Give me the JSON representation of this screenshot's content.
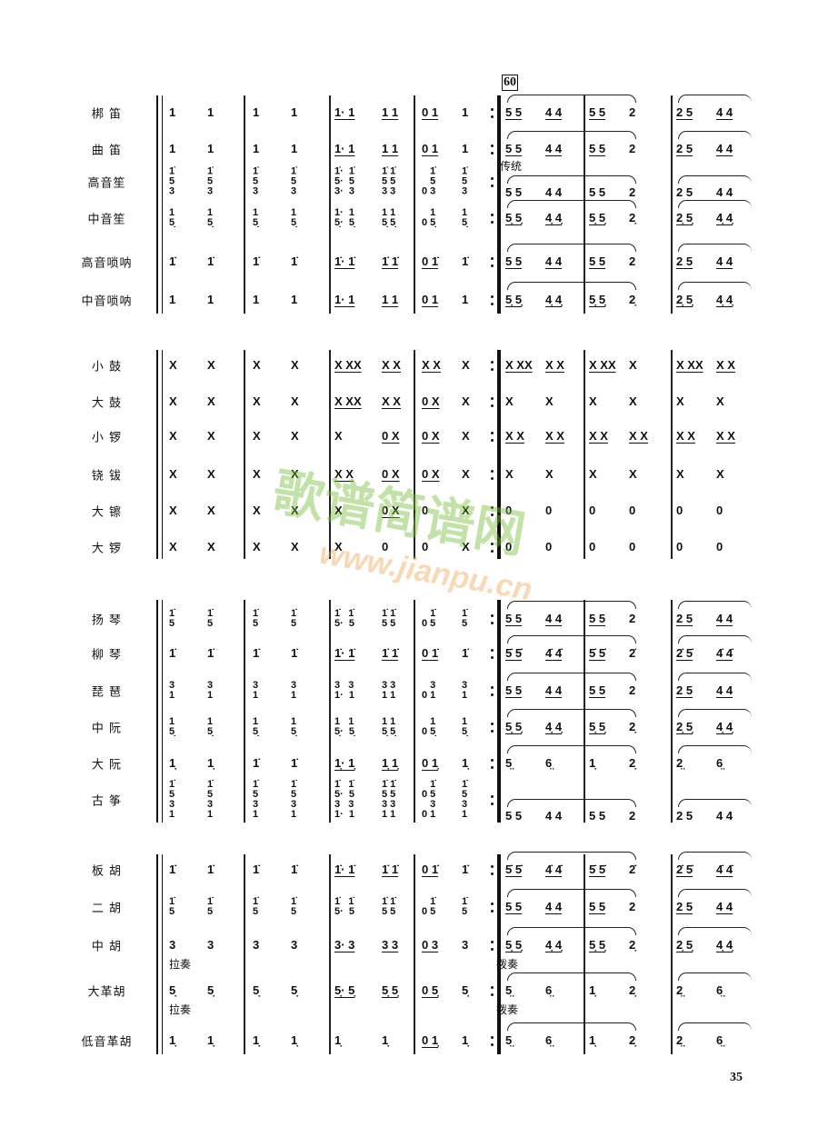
{
  "rehearsal_mark": "60",
  "page_number": "35",
  "watermark": {
    "title": "歌谱简谱网",
    "url": "www.jianpu.cn"
  },
  "sections": [
    {
      "rows": [
        {
          "label": "梆 笛",
          "slur": true,
          "measures": [
            [
              "1",
              "1"
            ],
            [
              "1",
              "1"
            ],
            [
              "1· 1",
              "1 1"
            ],
            [
              "0 1",
              "1"
            ],
            [
              "5 5",
              "4 4"
            ],
            [
              "5 5",
              "2"
            ],
            [
              "2 5",
              "4 4"
            ]
          ]
        },
        {
          "label": "曲 笛",
          "slur": true,
          "measures": [
            [
              "1",
              "1"
            ],
            [
              "1",
              "1"
            ],
            [
              "1· 1",
              "1 1"
            ],
            [
              "0 1",
              "1"
            ],
            [
              "5 5",
              "4 4"
            ],
            [
              "5 5",
              "2"
            ],
            [
              "2 5",
              "4 4"
            ]
          ]
        },
        {
          "label": "高音笙",
          "slur": true,
          "annotation": "传统",
          "measures": [
            [
              "1̇\n5\n3",
              "1̇\n5\n3"
            ],
            [
              "1̇\n5\n3",
              "1̇\n5\n3"
            ],
            [
              "1̇·  1̇\n5·  5\n3·  3",
              "1̇ 1̇\n5 5\n3 3"
            ],
            [
              "   1̇\n   5\n0 3",
              "1̇\n5\n3"
            ],
            [
              "\n\n5 5",
              "\n\n4 4"
            ],
            [
              "\n\n5 5",
              "\n\n2"
            ],
            [
              "\n\n2 5",
              "\n\n4 4"
            ]
          ]
        },
        {
          "label": "中音笙",
          "slur": true,
          "measures": [
            [
              "1\n5̣",
              "1\n5̣"
            ],
            [
              "1\n5̣",
              "1\n5̣"
            ],
            [
              "1·  1\n5̣·  5̣",
              "1 1\n5̣ 5̣"
            ],
            [
              "   1\n0 5̣",
              "1\n5̣"
            ],
            [
              "5̣ 5̣",
              "4̣ 4̣"
            ],
            [
              "5̣ 5̣",
              "2̣"
            ],
            [
              "2̣ 5̣",
              "4̣ 4̣"
            ]
          ]
        },
        {
          "label": "高音唢呐",
          "slur": true,
          "measures": [
            [
              "1̇",
              "1̇"
            ],
            [
              "1̇",
              "1̇"
            ],
            [
              "1̇· 1̇",
              "1̇ 1̇"
            ],
            [
              "0 1̇",
              "1̇"
            ],
            [
              "5 5",
              "4 4"
            ],
            [
              "5 5",
              "2"
            ],
            [
              "2 5",
              "4 4"
            ]
          ]
        },
        {
          "label": "中音唢呐",
          "slur": true,
          "measures": [
            [
              "1",
              "1"
            ],
            [
              "1",
              "1"
            ],
            [
              "1· 1",
              "1 1"
            ],
            [
              "0 1",
              "1"
            ],
            [
              "5̣ 5̣",
              "4̣ 4̣"
            ],
            [
              "5̣ 5̣",
              "2̣"
            ],
            [
              "2̣ 5̣",
              "4̣ 4̣"
            ]
          ]
        }
      ]
    },
    {
      "rows": [
        {
          "label": "小 鼓",
          "measures": [
            [
              "X",
              "X"
            ],
            [
              "X",
              "X"
            ],
            [
              "X XX",
              "X X"
            ],
            [
              "X X",
              "X"
            ],
            [
              "X XX",
              "X X"
            ],
            [
              "X XX",
              "X"
            ],
            [
              "X XX",
              "X X"
            ]
          ]
        },
        {
          "label": "大 鼓",
          "measures": [
            [
              "X",
              "X"
            ],
            [
              "X",
              "X"
            ],
            [
              "X XX",
              "X X"
            ],
            [
              "0 X",
              "X"
            ],
            [
              "X",
              "X"
            ],
            [
              "X",
              "X"
            ],
            [
              "X",
              "X"
            ]
          ]
        },
        {
          "label": "小 锣",
          "measures": [
            [
              "X",
              "X"
            ],
            [
              "X",
              "X"
            ],
            [
              "X",
              "0 X"
            ],
            [
              "0 X",
              "X"
            ],
            [
              "X X",
              "X X"
            ],
            [
              "X X",
              "X X"
            ],
            [
              "X X",
              "X X"
            ]
          ]
        },
        {
          "label": "铙 钹",
          "measures": [
            [
              "X",
              "X"
            ],
            [
              "X",
              "X"
            ],
            [
              "X X",
              "0 X"
            ],
            [
              "0 X",
              "X"
            ],
            [
              "X",
              "X"
            ],
            [
              "X",
              "X"
            ],
            [
              "X",
              "X"
            ]
          ]
        },
        {
          "label": "大 镲",
          "measures": [
            [
              "X",
              "X"
            ],
            [
              "X",
              "X"
            ],
            [
              "X",
              "0 X"
            ],
            [
              "0",
              "X"
            ],
            [
              "0",
              "0"
            ],
            [
              "0",
              "0"
            ],
            [
              "0",
              "0"
            ]
          ]
        },
        {
          "label": "大 锣",
          "measures": [
            [
              "X",
              "X"
            ],
            [
              "X",
              "X"
            ],
            [
              "X",
              "0"
            ],
            [
              "0",
              "X"
            ],
            [
              "0",
              "0"
            ],
            [
              "0",
              "0"
            ],
            [
              "0",
              "0"
            ]
          ]
        }
      ]
    },
    {
      "rows": [
        {
          "label": "扬 琴",
          "slur": true,
          "measures": [
            [
              "1̇\n5",
              "1̇\n5"
            ],
            [
              "1̇\n5",
              "1̇\n5"
            ],
            [
              "1̇   1̇\n5·  5",
              "1̇ 1̇\n5 5"
            ],
            [
              "   1̇\n0 5",
              "1̇\n5"
            ],
            [
              "5 5",
              "4 4"
            ],
            [
              "5 5",
              "2"
            ],
            [
              "2 5",
              "4 4"
            ]
          ]
        },
        {
          "label": "柳 琴",
          "slur": true,
          "measures": [
            [
              "1̇",
              "1̇"
            ],
            [
              "1̇",
              "1̇"
            ],
            [
              "1̇· 1̇",
              "1̇ 1̇"
            ],
            [
              "0 1̇",
              "1̇"
            ],
            [
              "5̇ 5̇",
              "4̇ 4̇"
            ],
            [
              "5̇ 5̇",
              "2̇"
            ],
            [
              "2̇ 5̇",
              "4̇ 4̇"
            ]
          ]
        },
        {
          "label": "琵 琶",
          "slur": true,
          "measures": [
            [
              "3\n1",
              "3\n1"
            ],
            [
              "3\n1",
              "3\n1"
            ],
            [
              "3   3\n1·  1",
              "3 3\n1 1"
            ],
            [
              "   3\n0 1",
              "3\n1"
            ],
            [
              "5 5",
              "4 4"
            ],
            [
              "5 5",
              "2"
            ],
            [
              "2 5",
              "4 4"
            ]
          ]
        },
        {
          "label": "中 阮",
          "slur": true,
          "measures": [
            [
              "1\n5̣",
              "1\n5̣"
            ],
            [
              "1\n5̣",
              "1\n5̣"
            ],
            [
              "1   1\n5̣·  5̣",
              "1 1\n5̣ 5̣"
            ],
            [
              "   1\n0 5̣",
              "1\n5̣"
            ],
            [
              "5̣ 5̣",
              "4̣ 4̣"
            ],
            [
              "5̣ 5̣",
              "2̣"
            ],
            [
              "2̣ 5̣",
              "4̣ 4̣"
            ]
          ]
        },
        {
          "label": "大 阮",
          "slur": true,
          "measures": [
            [
              "1̣",
              "1̣"
            ],
            [
              "1̇",
              "1̇"
            ],
            [
              "1̣· 1̣",
              "1̣ 1̣"
            ],
            [
              "0 1̣",
              "1̣"
            ],
            [
              "5̤",
              "6̤"
            ],
            [
              "1̣",
              "2̣"
            ],
            [
              "2̤",
              "6̤"
            ]
          ]
        },
        {
          "label": "古 筝",
          "slur": true,
          "measures": [
            [
              "1̇\n5\n3\n1",
              "1̇\n5\n3\n1"
            ],
            [
              "1̇\n5\n3\n1",
              "1̇\n5\n3\n1"
            ],
            [
              "1̇   1̇\n5·  5\n3   3\n1·  1",
              "1̇ 1̇\n5 5\n3 3\n1 1"
            ],
            [
              "   1̇\n0 5\n   3\n0 1",
              "1̇\n5\n3\n1"
            ],
            [
              "\n\n\n5 5",
              "\n\n\n4 4"
            ],
            [
              "\n\n\n5 5",
              "\n\n\n2"
            ],
            [
              "\n\n\n2 5",
              "\n\n\n4 4"
            ]
          ]
        }
      ]
    },
    {
      "rows": [
        {
          "label": "板 胡",
          "slur": true,
          "measures": [
            [
              "1̇",
              "1̇"
            ],
            [
              "1̇",
              "1̇"
            ],
            [
              "1̇· 1̇",
              "1̇ 1̇"
            ],
            [
              "0 1̇",
              "1̇"
            ],
            [
              "5̇ 5̇",
              "4̇ 4̇"
            ],
            [
              "5̇ 5̇",
              "2̇"
            ],
            [
              "2̇ 5̇",
              "4̇ 4̇"
            ]
          ]
        },
        {
          "label": "二 胡",
          "slur": true,
          "measures": [
            [
              "1̇\n5",
              "1̇\n5"
            ],
            [
              "1̇\n5",
              "1̇\n5"
            ],
            [
              "1̇   1̇\n5·  5",
              "1̇ 1̇\n5 5"
            ],
            [
              "   1̇\n0 5",
              "1̇\n5"
            ],
            [
              "5 5",
              "4 4"
            ],
            [
              "5 5",
              "2"
            ],
            [
              "2 5",
              "4 4"
            ]
          ]
        },
        {
          "label": "中 胡",
          "slur": true,
          "annotation_m1": "拉奏",
          "annotation_m5": "拨奏",
          "measures": [
            [
              "3",
              "3"
            ],
            [
              "3",
              "3"
            ],
            [
              "3· 3",
              "3 3"
            ],
            [
              "0 3",
              "3"
            ],
            [
              "5̣ 5̣",
              "4̣ 4̣"
            ],
            [
              "5̣ 5̣",
              "2̣"
            ],
            [
              "2̣ 5̣",
              "4̣ 4̣"
            ]
          ]
        },
        {
          "label": "大革胡",
          "slur": true,
          "annotation_m1": "拉奏",
          "annotation_m5": "拨奏",
          "measures": [
            [
              "5̣",
              "5̣"
            ],
            [
              "5̣",
              "5̣"
            ],
            [
              "5̣· 5̣",
              "5̣ 5̣"
            ],
            [
              "0 5̣",
              "5̣"
            ],
            [
              "5̤",
              "6̤"
            ],
            [
              "1̣",
              "2̣"
            ],
            [
              "2̤",
              "6̤"
            ]
          ]
        },
        {
          "label": "低音革胡",
          "slur": true,
          "measures": [
            [
              "1̣",
              "1̣"
            ],
            [
              "1̣",
              "1̣"
            ],
            [
              "1̣",
              "1̣"
            ],
            [
              "0 1̣",
              "1̣"
            ],
            [
              "5̤",
              "6̤"
            ],
            [
              "1̣",
              "2̣"
            ],
            [
              "2̤",
              "6̤"
            ]
          ]
        }
      ]
    }
  ]
}
